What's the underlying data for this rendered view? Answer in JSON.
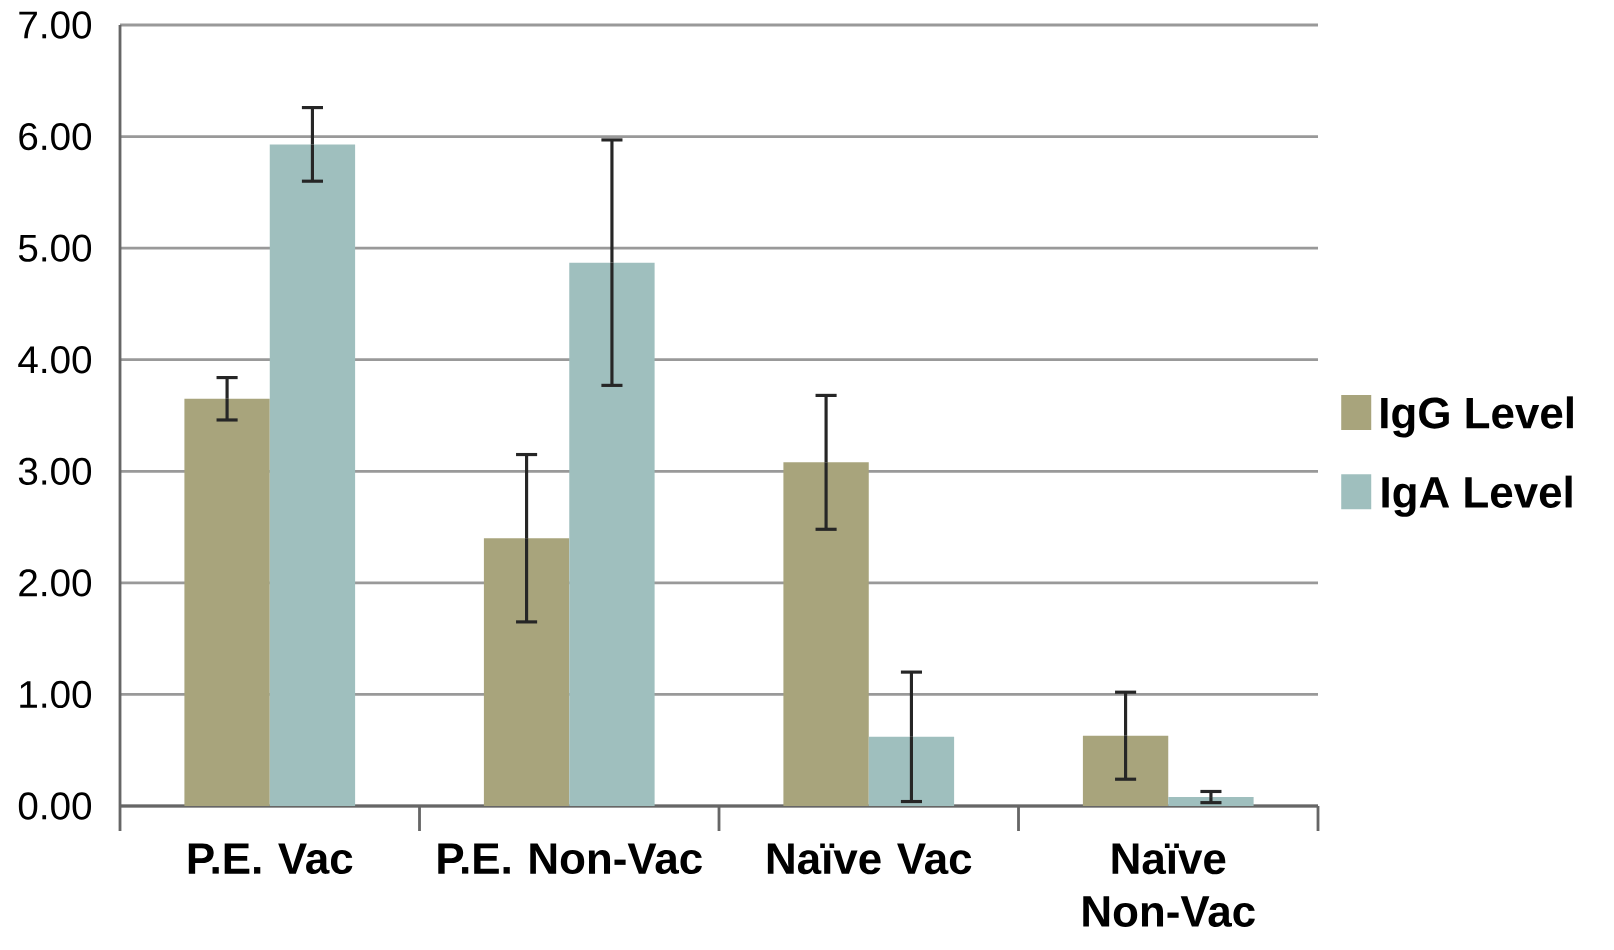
{
  "chart_data": {
    "type": "bar",
    "categories": [
      "P.E. Vac",
      "P.E. Non-Vac",
      "Naïve Vac",
      "Naïve Non-Vac"
    ],
    "series": [
      {
        "name": "IgG Level",
        "color": "#a8a47c",
        "values": [
          3.65,
          2.4,
          3.08,
          0.63
        ],
        "errors": [
          0.19,
          0.75,
          0.6,
          0.39
        ]
      },
      {
        "name": "IgA Level",
        "color": "#9fbfbe",
        "values": [
          5.93,
          4.87,
          0.62,
          0.08
        ],
        "errors": [
          0.33,
          1.1,
          0.58,
          0.05
        ]
      }
    ],
    "ylim": [
      0,
      7
    ],
    "yticks": [
      {
        "value": 0,
        "label": "0.00"
      },
      {
        "value": 1,
        "label": "1.00"
      },
      {
        "value": 2,
        "label": "2.00"
      },
      {
        "value": 3,
        "label": "3.00"
      },
      {
        "value": 4,
        "label": "4.00"
      },
      {
        "value": 5,
        "label": "5.00"
      },
      {
        "value": 6,
        "label": "6.00"
      },
      {
        "value": 7,
        "label": "7.00"
      }
    ],
    "grid": "y",
    "legend": "right"
  }
}
